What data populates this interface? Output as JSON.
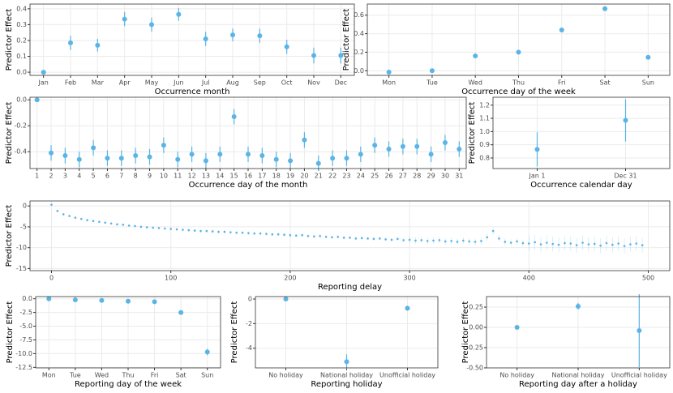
{
  "chart_data": [
    {
      "type": "point",
      "x_label": "Occurrence month",
      "y_label": "Predictor Effect",
      "color": "#5ab4e5",
      "grid": true,
      "categories": [
        "Jan",
        "Feb",
        "Mar",
        "Apr",
        "May",
        "Jun",
        "Jul",
        "Aug",
        "Sep",
        "Oct",
        "Nov",
        "Dec"
      ],
      "values": [
        0.0,
        0.185,
        0.17,
        0.335,
        0.3,
        0.365,
        0.21,
        0.235,
        0.23,
        0.16,
        0.105,
        0.105
      ],
      "errors": [
        0.01,
        0.045,
        0.04,
        0.045,
        0.045,
        0.04,
        0.045,
        0.04,
        0.045,
        0.045,
        0.05,
        0.05
      ],
      "ylim": [
        -0.02,
        0.43
      ],
      "yticks": [
        {
          "value": 0,
          "label": "0.0"
        },
        0.1,
        0.2,
        0.3,
        0.4
      ]
    },
    {
      "type": "point",
      "x_label": "Occurrence day of the week",
      "y_label": "Predictor Effect",
      "color": "#5ab4e5",
      "grid": true,
      "categories": [
        "Mon",
        "Tue",
        "Wed",
        "Thu",
        "Fri",
        "Sat",
        "Sun"
      ],
      "values": [
        -0.015,
        0.0,
        0.16,
        0.2,
        0.44,
        0.67,
        0.145
      ],
      "errors": [
        0.02,
        0.01,
        0.02,
        0.02,
        0.02,
        0.02,
        0.02
      ],
      "ylim": [
        -0.05,
        0.72
      ],
      "yticks": [
        {
          "value": 0,
          "label": "0.0"
        },
        0.2,
        0.4,
        0.6
      ]
    },
    {
      "type": "point",
      "x_label": "Occurrence day of the month",
      "y_label": "Predictor Effect",
      "color": "#5ab4e5",
      "grid": true,
      "categories": [
        "1",
        "2",
        "3",
        "4",
        "5",
        "6",
        "7",
        "8",
        "9",
        "10",
        "11",
        "12",
        "13",
        "14",
        "15",
        "16",
        "17",
        "18",
        "19",
        "20",
        "21",
        "22",
        "23",
        "24",
        "25",
        "26",
        "27",
        "28",
        "29",
        "30",
        "31"
      ],
      "values": [
        0.0,
        -0.41,
        -0.43,
        -0.46,
        -0.37,
        -0.45,
        -0.45,
        -0.43,
        -0.44,
        -0.35,
        -0.46,
        -0.42,
        -0.47,
        -0.42,
        -0.13,
        -0.42,
        -0.43,
        -0.46,
        -0.47,
        -0.31,
        -0.49,
        -0.45,
        -0.45,
        -0.42,
        -0.35,
        -0.38,
        -0.36,
        -0.36,
        -0.42,
        -0.33,
        -0.38
      ],
      "errors": [
        0.01,
        0.06,
        0.06,
        0.06,
        0.06,
        0.06,
        0.06,
        0.06,
        0.06,
        0.06,
        0.06,
        0.06,
        0.06,
        0.06,
        0.06,
        0.06,
        0.06,
        0.06,
        0.06,
        0.06,
        0.06,
        0.06,
        0.06,
        0.06,
        0.06,
        0.06,
        0.06,
        0.06,
        0.06,
        0.06,
        0.06
      ],
      "ylim": [
        -0.53,
        0.02
      ],
      "yticks": [
        {
          "value": 0,
          "label": "0.0"
        },
        -0.2,
        -0.4
      ]
    },
    {
      "type": "point",
      "x_label": "Occurrence calendar day",
      "y_label": "Predictor Effect",
      "color": "#5ab4e5",
      "grid": true,
      "categories": [
        "Jan 1",
        "Dec 31"
      ],
      "values": [
        0.865,
        1.085
      ],
      "errors": [
        0.13,
        0.16
      ],
      "ylim": [
        0.72,
        1.26
      ],
      "yticks": [
        0.8,
        0.9,
        {
          "value": 1,
          "label": "1.0"
        },
        1.1,
        1.2
      ]
    },
    {
      "type": "scatter",
      "x_label": "Reporting delay",
      "y_label": "Predictor Effect",
      "color": "#5ab4e5",
      "grid": true,
      "x": [
        0,
        5,
        10,
        15,
        20,
        25,
        30,
        35,
        40,
        45,
        50,
        55,
        60,
        65,
        70,
        75,
        80,
        85,
        90,
        95,
        100,
        105,
        110,
        115,
        120,
        125,
        130,
        135,
        140,
        145,
        150,
        155,
        160,
        165,
        170,
        175,
        180,
        185,
        190,
        195,
        200,
        205,
        210,
        215,
        220,
        225,
        230,
        235,
        240,
        245,
        250,
        255,
        260,
        265,
        270,
        275,
        280,
        285,
        290,
        295,
        300,
        305,
        310,
        315,
        320,
        325,
        330,
        335,
        340,
        345,
        350,
        355,
        360,
        365,
        370,
        375,
        380,
        385,
        390,
        395,
        400,
        405,
        410,
        415,
        420,
        425,
        430,
        435,
        440,
        445,
        450,
        455,
        460,
        465,
        470,
        475,
        480,
        485,
        490,
        495
      ],
      "values": [
        0.3,
        -1.2,
        -2.0,
        -2.4,
        -2.8,
        -3.1,
        -3.4,
        -3.6,
        -3.8,
        -4.0,
        -4.2,
        -4.4,
        -4.5,
        -4.7,
        -4.8,
        -5.0,
        -5.1,
        -5.2,
        -5.3,
        -5.4,
        -5.5,
        -5.6,
        -5.7,
        -5.8,
        -5.9,
        -6.0,
        -6.0,
        -6.1,
        -6.2,
        -6.2,
        -6.3,
        -6.4,
        -6.4,
        -6.5,
        -6.6,
        -6.6,
        -6.7,
        -6.8,
        -6.8,
        -6.9,
        -7.0,
        -7.1,
        -7.0,
        -7.2,
        -7.3,
        -7.2,
        -7.4,
        -7.5,
        -7.4,
        -7.6,
        -7.6,
        -7.8,
        -7.7,
        -7.8,
        -7.9,
        -7.8,
        -8.0,
        -8.1,
        -7.9,
        -8.2,
        -8.1,
        -8.3,
        -8.2,
        -8.4,
        -8.3,
        -8.2,
        -8.5,
        -8.4,
        -8.6,
        -8.3,
        -8.5,
        -8.6,
        -8.4,
        -7.5,
        -6.0,
        -7.8,
        -8.6,
        -8.8,
        -8.5,
        -8.9,
        -9.0,
        -8.7,
        -9.2,
        -8.8,
        -9.1,
        -9.3,
        -8.9,
        -9.0,
        -9.4,
        -8.8,
        -9.2,
        -9.1,
        -9.5,
        -8.9,
        -9.3,
        -9.0,
        -9.6,
        -9.2,
        -9.0,
        -9.4
      ],
      "errors": [
        0.2,
        0.2,
        0.2,
        0.2,
        0.2,
        0.2,
        0.2,
        0.2,
        0.2,
        0.2,
        0.2,
        0.2,
        0.2,
        0.2,
        0.2,
        0.2,
        0.2,
        0.2,
        0.2,
        0.2,
        0.4,
        0.4,
        0.4,
        0.4,
        0.4,
        0.4,
        0.4,
        0.4,
        0.4,
        0.4,
        0.4,
        0.4,
        0.4,
        0.4,
        0.4,
        0.4,
        0.4,
        0.4,
        0.4,
        0.4,
        0.4,
        0.4,
        0.4,
        0.4,
        0.4,
        0.4,
        0.4,
        0.4,
        0.4,
        0.4,
        0.4,
        0.4,
        0.4,
        0.4,
        0.4,
        0.4,
        0.4,
        0.4,
        0.4,
        0.4,
        0.8,
        0.8,
        0.8,
        0.8,
        0.8,
        0.8,
        0.8,
        0.8,
        0.8,
        0.8,
        0.8,
        0.8,
        0.8,
        0.8,
        0.8,
        0.8,
        0.8,
        0.8,
        0.8,
        0.8,
        1.8,
        1.8,
        1.8,
        1.8,
        1.8,
        1.8,
        1.8,
        1.8,
        1.8,
        1.8,
        1.8,
        1.8,
        1.8,
        1.8,
        1.8,
        1.8,
        1.8,
        1.8,
        1.8,
        1.8
      ],
      "xlim": [
        -18,
        518
      ],
      "xticks": [
        0,
        100,
        200,
        300,
        400,
        500
      ],
      "ylim": [
        -15.5,
        1.2
      ],
      "yticks": [
        0,
        -5,
        -10,
        -15
      ]
    },
    {
      "type": "point",
      "x_label": "Reporting day of the week",
      "y_label": "Predictor Effect",
      "color": "#5ab4e5",
      "grid": true,
      "categories": [
        "Mon",
        "Tue",
        "Wed",
        "Thu",
        "Fri",
        "Sat",
        "Sun"
      ],
      "values": [
        0.0,
        -0.2,
        -0.3,
        -0.45,
        -0.55,
        -2.5,
        -9.7
      ],
      "errors": [
        0.05,
        0.1,
        0.1,
        0.1,
        0.1,
        0.15,
        0.6
      ],
      "ylim": [
        -12.6,
        0.4
      ],
      "yticks": [
        {
          "value": 0,
          "label": "0.0"
        },
        -2.5,
        {
          "value": -5,
          "label": "-5.0"
        },
        -7.5,
        {
          "value": -10,
          "label": "-10.0"
        },
        -12.5
      ]
    },
    {
      "type": "point",
      "x_label": "Reporting holiday",
      "y_label": "Predictor Effect",
      "color": "#5ab4e5",
      "grid": true,
      "categories": [
        "No holiday",
        "National holiday",
        "Unofficial holiday"
      ],
      "values": [
        0,
        -5.1,
        -0.75
      ],
      "errors": [
        0.02,
        0.6,
        0.2
      ],
      "ylim": [
        -5.6,
        0.2
      ],
      "yticks": [
        0,
        -2,
        -4
      ]
    },
    {
      "type": "point",
      "x_label": "Reporting day after a holiday",
      "y_label": "Predictor Effect",
      "color": "#5ab4e5",
      "grid": true,
      "categories": [
        "No holiday",
        "National holiday",
        "Unofficial holiday"
      ],
      "values": [
        0,
        0.26,
        -0.04
      ],
      "errors": [
        0.01,
        0.04,
        0.45
      ],
      "ylim": [
        -0.5,
        0.38
      ],
      "yticks": [
        0.25,
        {
          "value": 0,
          "label": "0.00"
        },
        -0.25,
        {
          "value": -0.5,
          "label": "-0.50"
        }
      ]
    }
  ]
}
